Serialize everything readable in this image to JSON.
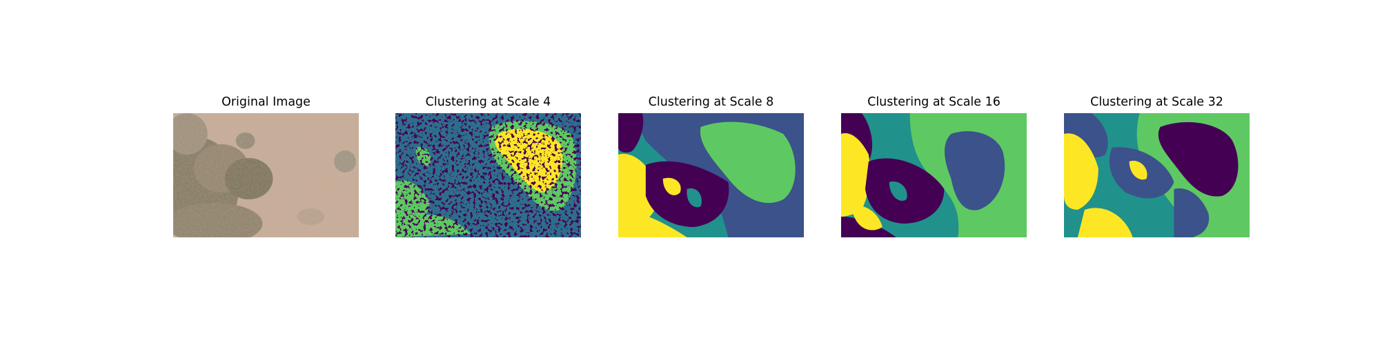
{
  "figure": {
    "panels": [
      {
        "id": "original",
        "title": "Original Image",
        "kind": "photo",
        "palette": [
          "#c9ad98",
          "#b59e88",
          "#8a8064",
          "#6e6a4c",
          "#9a8a78",
          "#d8bca6"
        ]
      },
      {
        "id": "scale4",
        "title": "Clustering at Scale 4",
        "kind": "clusters",
        "scale": 4,
        "palette": [
          "#440154",
          "#3b528b",
          "#21918c",
          "#5ec962",
          "#fde725"
        ]
      },
      {
        "id": "scale8",
        "title": "Clustering at Scale 8",
        "kind": "clusters",
        "scale": 8,
        "palette": [
          "#440154",
          "#3b528b",
          "#21918c",
          "#5ec962",
          "#fde725"
        ]
      },
      {
        "id": "scale16",
        "title": "Clustering at Scale 16",
        "kind": "clusters",
        "scale": 16,
        "palette": [
          "#440154",
          "#3b528b",
          "#21918c",
          "#5ec962",
          "#fde725"
        ]
      },
      {
        "id": "scale32",
        "title": "Clustering at Scale 32",
        "kind": "clusters",
        "scale": 32,
        "palette": [
          "#440154",
          "#3b528b",
          "#21918c",
          "#5ec962",
          "#fde725"
        ]
      }
    ]
  }
}
